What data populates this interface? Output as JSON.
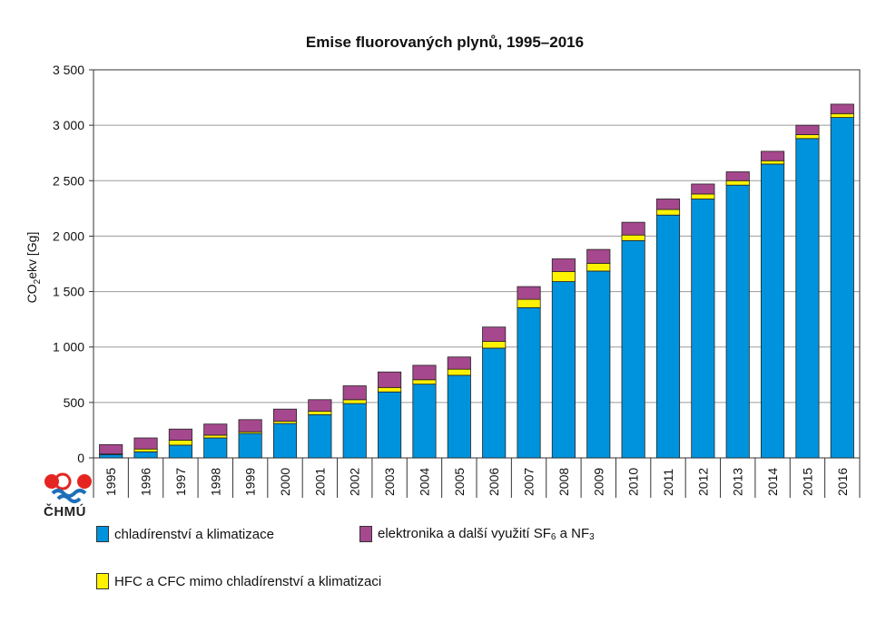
{
  "colors": {
    "cooling": "#0093dd",
    "hfc": "#fff200",
    "electronics": "#a6488d",
    "grid": "#9a9a9a",
    "axis": "#333333",
    "logo_red": "#e52521",
    "logo_blue": "#1e6fb8"
  },
  "logo": {
    "text": "ČHMÚ",
    "icon": "chmu-logo-icon"
  },
  "chart_data": {
    "type": "bar",
    "stacked": true,
    "title": "Emise fluorovaných plynů, 1995–2016",
    "ylabel_main": "CO",
    "ylabel_sub": "2",
    "ylabel_rest": "ekv [Gg]",
    "ylim": [
      0,
      3500
    ],
    "yticks": [
      0,
      500,
      1000,
      1500,
      2000,
      2500,
      3000,
      3500
    ],
    "ytick_labels": [
      "0",
      "500",
      "1 000",
      "1 500",
      "2 000",
      "2 500",
      "3 000",
      "3 500"
    ],
    "grid": true,
    "categories": [
      "1995",
      "1996",
      "1997",
      "1998",
      "1999",
      "2000",
      "2001",
      "2002",
      "2003",
      "2004",
      "2005",
      "2006",
      "2007",
      "2008",
      "2009",
      "2010",
      "2011",
      "2012",
      "2013",
      "2014",
      "2015",
      "2016"
    ],
    "series": [
      {
        "name": "chladírenství a klimatizace",
        "color_key": "cooling",
        "values": [
          30,
          55,
          115,
          180,
          220,
          310,
          390,
          490,
          595,
          665,
          745,
          990,
          1355,
          1590,
          1685,
          1960,
          2190,
          2335,
          2460,
          2650,
          2880,
          3070
        ]
      },
      {
        "name": "HFC a CFC mimo chladírenství a klimatizaci",
        "color_key": "hfc",
        "values": [
          5,
          25,
          45,
          25,
          15,
          20,
          30,
          35,
          40,
          40,
          55,
          60,
          75,
          90,
          70,
          50,
          50,
          45,
          40,
          30,
          35,
          35
        ]
      },
      {
        "name": "elektronika a další využití SF6 a NF3",
        "color_key": "electronics",
        "values": [
          85,
          100,
          100,
          100,
          110,
          110,
          105,
          125,
          140,
          130,
          110,
          130,
          115,
          115,
          125,
          115,
          95,
          90,
          80,
          85,
          85,
          85
        ]
      }
    ],
    "legend": {
      "placement": "bottom",
      "items": [
        {
          "label": "chladírenství a klimatizace",
          "color_key": "cooling"
        },
        {
          "label_main": "elektronika a další využití SF",
          "label_sub1": "6",
          "label_mid": " a NF",
          "label_sub2": "3",
          "color_key": "electronics"
        },
        {
          "label": "HFC a CFC mimo chladírenství a klimatizaci",
          "color_key": "hfc"
        }
      ]
    }
  }
}
